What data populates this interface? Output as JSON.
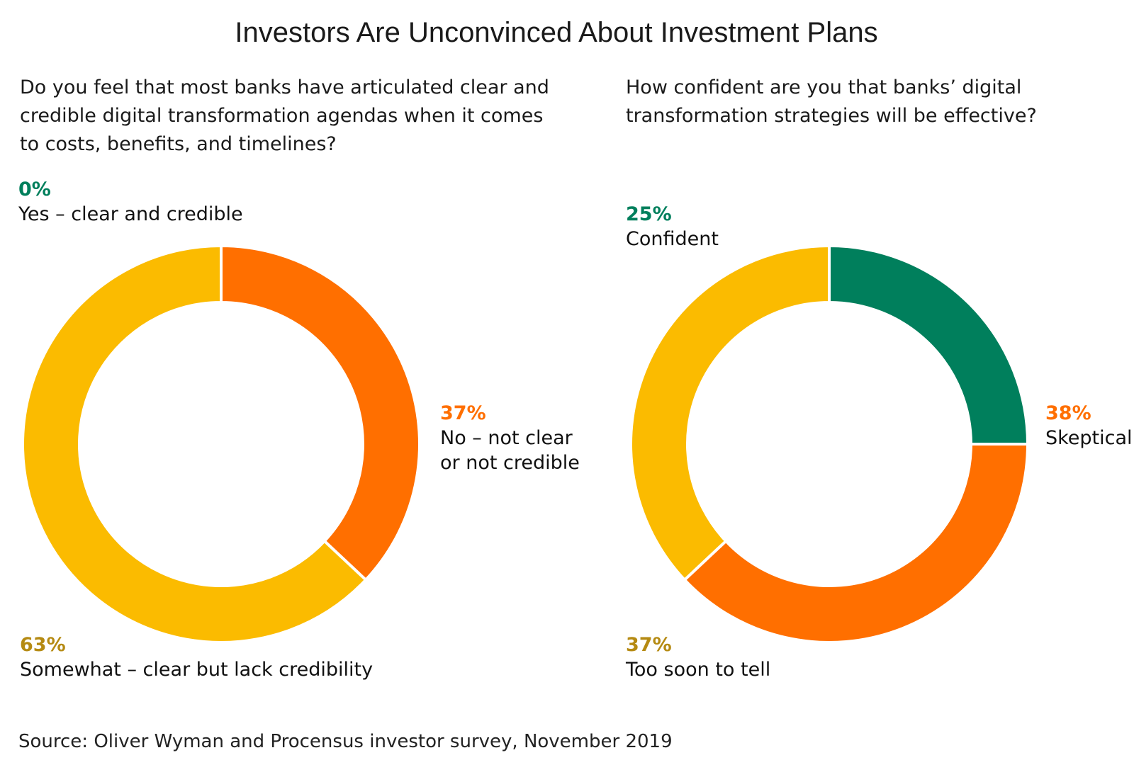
{
  "title": "Investors Are Unconvinced About Investment Plans",
  "source": "Source: Oliver Wyman and Procensus investor survey, November 2019",
  "colors": {
    "green": "#007f5c",
    "orange": "#ff6f00",
    "yellow": "#fbbb00",
    "label_yellow": "#b58a12"
  },
  "chart_data": [
    {
      "type": "pie",
      "variant": "donut",
      "title": "Do you feel that most banks have articulated clear and credible digital transformation agendas when it comes to costs, benefits, and timelines?",
      "categories": [
        "Yes – clear and credible",
        "No – not clear or not credible",
        "Somewhat – clear but lack credibility"
      ],
      "values": [
        0,
        37,
        63
      ],
      "value_labels": [
        "0%",
        "37%",
        "63%"
      ],
      "label_lines": [
        [
          "Yes – clear and credible"
        ],
        [
          "No – not clear",
          "or not credible"
        ],
        [
          "Somewhat – clear but lack credibility"
        ]
      ],
      "colors": [
        "#007f5c",
        "#ff6f00",
        "#fbbb00"
      ]
    },
    {
      "type": "pie",
      "variant": "donut",
      "title": "How confident are you that banks’ digital transformation strategies will be effective?",
      "categories": [
        "Confident",
        "Skeptical",
        "Too soon to tell"
      ],
      "values": [
        25,
        38,
        37
      ],
      "value_labels": [
        "25%",
        "38%",
        "37%"
      ],
      "label_lines": [
        [
          "Confident"
        ],
        [
          "Skeptical"
        ],
        [
          "Too soon to tell"
        ]
      ],
      "colors": [
        "#007f5c",
        "#ff6f00",
        "#fbbb00"
      ]
    }
  ]
}
